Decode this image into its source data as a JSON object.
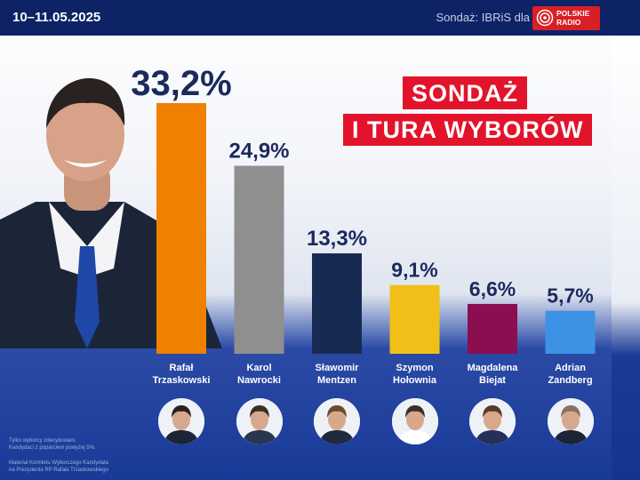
{
  "header": {
    "date": "10–11.05.2025",
    "source_label": "Sondaż:",
    "source_name": "IBRiS dla",
    "logo_line1": "POLSKIE",
    "logo_line2": "RADIO"
  },
  "headline": {
    "line1": "SONDAŻ",
    "line2": "I TURA WYBORÓW"
  },
  "colors": {
    "navy": "#0d2366",
    "red": "#e3132b",
    "label_color": "#1b2a5c"
  },
  "chart_data": {
    "type": "bar",
    "categories": [
      "Rafał Trzaskowski",
      "Karol Nawrocki",
      "Sławomir Mentzen",
      "Szymon Hołownia",
      "Magdalena Biejat",
      "Adrian Zandberg"
    ],
    "name_lines": [
      [
        "Rafał",
        "Trzaskowski"
      ],
      [
        "Karol",
        "Nawrocki"
      ],
      [
        "Sławomir",
        "Mentzen"
      ],
      [
        "Szymon",
        "Hołownia"
      ],
      [
        "Magdalena",
        "Biejat"
      ],
      [
        "Adrian",
        "Zandberg"
      ]
    ],
    "values": [
      33.2,
      24.9,
      13.3,
      9.1,
      6.6,
      5.7
    ],
    "value_labels": [
      "33,2%",
      "24,9%",
      "13,3%",
      "9,1%",
      "6,6%",
      "5,7%"
    ],
    "colors": [
      "#f08000",
      "#8f8f8f",
      "#172b52",
      "#f0c018",
      "#8a0e50",
      "#3d92e6"
    ],
    "unit": "%"
  },
  "footnote": {
    "line1": "Tylko wyborcy zdecydowani.",
    "line2": "Kandydaci z poparciem powyżej 5%.",
    "line3": "Materiał Komitetu Wyborczego Kandydata",
    "line4": "na Prezydenta RP Rafała Trzaskowskiego"
  }
}
